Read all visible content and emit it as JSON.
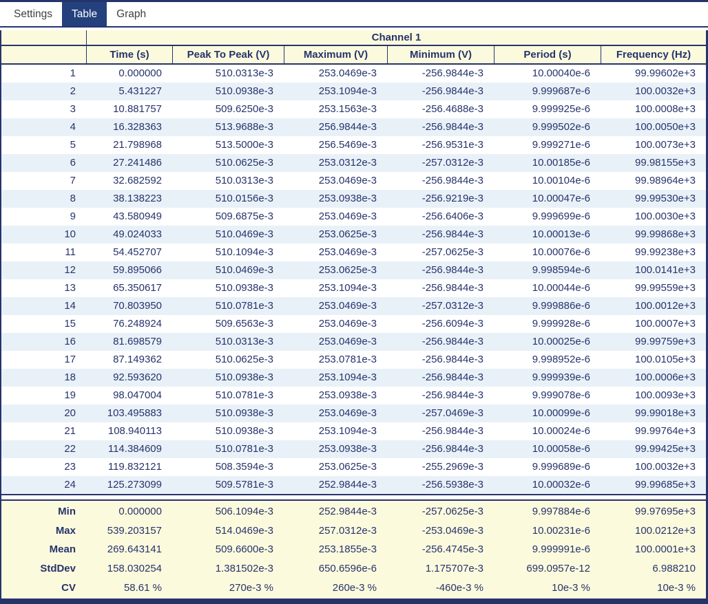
{
  "tabs": [
    {
      "label": "Settings",
      "active": false
    },
    {
      "label": "Table",
      "active": true
    },
    {
      "label": "Graph",
      "active": false
    }
  ],
  "table": {
    "channel_header": "Channel 1",
    "columns": [
      "",
      "Time (s)",
      "Peak To Peak (V)",
      "Maximum (V)",
      "Minimum (V)",
      "Period (s)",
      "Frequency (Hz)"
    ],
    "rows": [
      [
        "1",
        "0.000000",
        "510.0313e-3",
        "253.0469e-3",
        "-256.9844e-3",
        "10.00040e-6",
        "99.99602e+3"
      ],
      [
        "2",
        "5.431227",
        "510.0938e-3",
        "253.1094e-3",
        "-256.9844e-3",
        "9.999687e-6",
        "100.0032e+3"
      ],
      [
        "3",
        "10.881757",
        "509.6250e-3",
        "253.1563e-3",
        "-256.4688e-3",
        "9.999925e-6",
        "100.0008e+3"
      ],
      [
        "4",
        "16.328363",
        "513.9688e-3",
        "256.9844e-3",
        "-256.9844e-3",
        "9.999502e-6",
        "100.0050e+3"
      ],
      [
        "5",
        "21.798968",
        "513.5000e-3",
        "256.5469e-3",
        "-256.9531e-3",
        "9.999271e-6",
        "100.0073e+3"
      ],
      [
        "6",
        "27.241486",
        "510.0625e-3",
        "253.0312e-3",
        "-257.0312e-3",
        "10.00185e-6",
        "99.98155e+3"
      ],
      [
        "7",
        "32.682592",
        "510.0313e-3",
        "253.0469e-3",
        "-256.9844e-3",
        "10.00104e-6",
        "99.98964e+3"
      ],
      [
        "8",
        "38.138223",
        "510.0156e-3",
        "253.0938e-3",
        "-256.9219e-3",
        "10.00047e-6",
        "99.99530e+3"
      ],
      [
        "9",
        "43.580949",
        "509.6875e-3",
        "253.0469e-3",
        "-256.6406e-3",
        "9.999699e-6",
        "100.0030e+3"
      ],
      [
        "10",
        "49.024033",
        "510.0469e-3",
        "253.0625e-3",
        "-256.9844e-3",
        "10.00013e-6",
        "99.99868e+3"
      ],
      [
        "11",
        "54.452707",
        "510.1094e-3",
        "253.0469e-3",
        "-257.0625e-3",
        "10.00076e-6",
        "99.99238e+3"
      ],
      [
        "12",
        "59.895066",
        "510.0469e-3",
        "253.0625e-3",
        "-256.9844e-3",
        "9.998594e-6",
        "100.0141e+3"
      ],
      [
        "13",
        "65.350617",
        "510.0938e-3",
        "253.1094e-3",
        "-256.9844e-3",
        "10.00044e-6",
        "99.99559e+3"
      ],
      [
        "14",
        "70.803950",
        "510.0781e-3",
        "253.0469e-3",
        "-257.0312e-3",
        "9.999886e-6",
        "100.0012e+3"
      ],
      [
        "15",
        "76.248924",
        "509.6563e-3",
        "253.0469e-3",
        "-256.6094e-3",
        "9.999928e-6",
        "100.0007e+3"
      ],
      [
        "16",
        "81.698579",
        "510.0313e-3",
        "253.0469e-3",
        "-256.9844e-3",
        "10.00025e-6",
        "99.99759e+3"
      ],
      [
        "17",
        "87.149362",
        "510.0625e-3",
        "253.0781e-3",
        "-256.9844e-3",
        "9.998952e-6",
        "100.0105e+3"
      ],
      [
        "18",
        "92.593620",
        "510.0938e-3",
        "253.1094e-3",
        "-256.9844e-3",
        "9.999939e-6",
        "100.0006e+3"
      ],
      [
        "19",
        "98.047004",
        "510.0781e-3",
        "253.0938e-3",
        "-256.9844e-3",
        "9.999078e-6",
        "100.0093e+3"
      ],
      [
        "20",
        "103.495883",
        "510.0938e-3",
        "253.0469e-3",
        "-257.0469e-3",
        "10.00099e-6",
        "99.99018e+3"
      ],
      [
        "21",
        "108.940113",
        "510.0938e-3",
        "253.1094e-3",
        "-256.9844e-3",
        "10.00024e-6",
        "99.99764e+3"
      ],
      [
        "22",
        "114.384609",
        "510.0781e-3",
        "253.0938e-3",
        "-256.9844e-3",
        "10.00058e-6",
        "99.99425e+3"
      ],
      [
        "23",
        "119.832121",
        "508.3594e-3",
        "253.0625e-3",
        "-255.2969e-3",
        "9.999689e-6",
        "100.0032e+3"
      ],
      [
        "24",
        "125.273099",
        "509.5781e-3",
        "252.9844e-3",
        "-256.5938e-3",
        "10.00032e-6",
        "99.99685e+3"
      ]
    ],
    "stats": [
      [
        "Min",
        "0.000000",
        "506.1094e-3",
        "252.9844e-3",
        "-257.0625e-3",
        "9.997884e-6",
        "99.97695e+3"
      ],
      [
        "Max",
        "539.203157",
        "514.0469e-3",
        "257.0312e-3",
        "-253.0469e-3",
        "10.00231e-6",
        "100.0212e+3"
      ],
      [
        "Mean",
        "269.643141",
        "509.6600e-3",
        "253.1855e-3",
        "-256.4745e-3",
        "9.999991e-6",
        "100.0001e+3"
      ],
      [
        "StdDev",
        "158.030254",
        "1.381502e-3",
        "650.6596e-6",
        "1.175707e-3",
        "699.0957e-12",
        "6.988210"
      ],
      [
        "CV",
        "58.61 %",
        "270e-3 %",
        "260e-3 %",
        "-460e-3 %",
        "10e-3 %",
        "10e-3 %"
      ]
    ]
  },
  "colors": {
    "navy": "#26336b",
    "tab_active_bg": "#24417e",
    "header_bg": "#fcfadd",
    "alt_row_bg": "#e9f1f8",
    "inactive_tab_text": "#3f3f3f"
  }
}
